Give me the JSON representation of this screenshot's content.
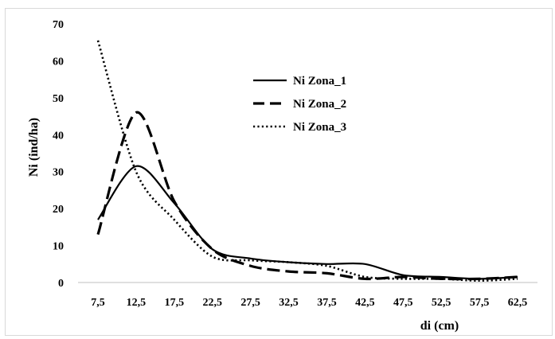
{
  "chart_data": {
    "type": "line",
    "title": "",
    "xlabel": "di (cm)",
    "ylabel": "Ni (ind/ha)",
    "ylim": [
      0,
      70
    ],
    "yticks": [
      0,
      10,
      20,
      30,
      40,
      50,
      60,
      70
    ],
    "grid": false,
    "legend_position": "top-center",
    "categories": [
      "7,5",
      "12,5",
      "17,5",
      "22,5",
      "27,5",
      "32,5",
      "37,5",
      "42,5",
      "47,5",
      "52,5",
      "57,5",
      "62,5"
    ],
    "series": [
      {
        "name": "Ni Zona_1",
        "style": "solid",
        "color": "#000000",
        "values": [
          17,
          31.5,
          21.5,
          9,
          6.5,
          5.5,
          5,
          5,
          2,
          1.5,
          1,
          1.5
        ]
      },
      {
        "name": "Ni Zona_2",
        "style": "dashed",
        "color": "#000000",
        "values": [
          13,
          46,
          22,
          9,
          4.5,
          3,
          2.5,
          1,
          1.5,
          1,
          1,
          1.5
        ]
      },
      {
        "name": "Ni Zona_3",
        "style": "dotted",
        "color": "#000000",
        "values": [
          65.5,
          30,
          17,
          7,
          6,
          5.5,
          4.5,
          1.5,
          1,
          1,
          0.5,
          1
        ]
      }
    ]
  }
}
